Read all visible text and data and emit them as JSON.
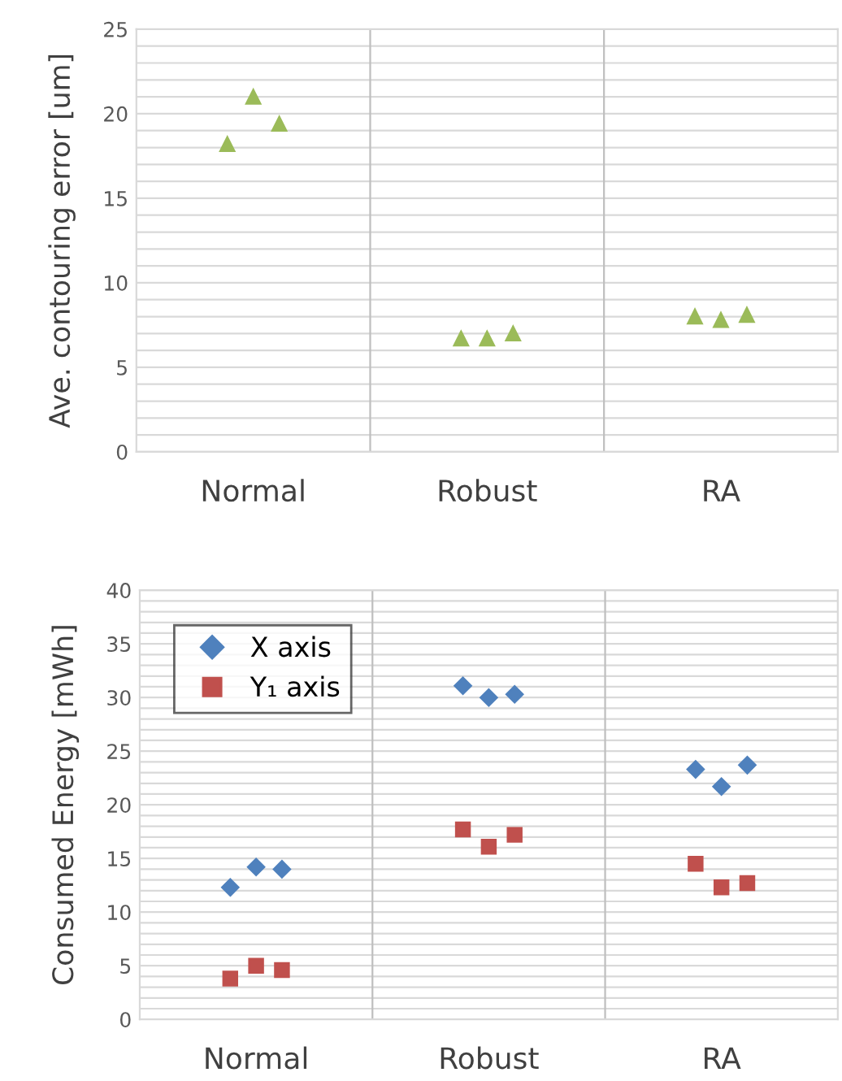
{
  "chart_data": [
    {
      "type": "scatter",
      "ylabel": "Ave. contouring error [um]",
      "categories": [
        null,
        null,
        null,
        null,
        "Normal",
        null,
        null,
        null,
        null,
        null,
        null,
        null,
        null,
        "Robust",
        null,
        null,
        null,
        null,
        null,
        null,
        null,
        null,
        "RA",
        null,
        null,
        null,
        null
      ],
      "ylim": [
        0,
        25
      ],
      "yticks": [
        0,
        {
          "value": 1,
          "label": null
        },
        {
          "value": 2,
          "label": null
        },
        {
          "value": 3,
          "label": null
        },
        {
          "value": 4,
          "label": null
        },
        5,
        {
          "value": 6,
          "label": null
        },
        {
          "value": 7,
          "label": null
        },
        {
          "value": 8,
          "label": null
        },
        {
          "value": 9,
          "label": null
        },
        10,
        {
          "value": 11,
          "label": null
        },
        {
          "value": 12,
          "label": null
        },
        {
          "value": 13,
          "label": null
        },
        {
          "value": 14,
          "label": null
        },
        15,
        {
          "value": 16,
          "label": null
        },
        {
          "value": 17,
          "label": null
        },
        {
          "value": 18,
          "label": null
        },
        {
          "value": 19,
          "label": null
        },
        20,
        {
          "value": 21,
          "label": null
        },
        {
          "value": 22,
          "label": null
        },
        {
          "value": 23,
          "label": null
        },
        {
          "value": 24,
          "label": null
        },
        25
      ],
      "grid": "y",
      "marker": "triangle",
      "series": [
        {
          "color": "#9bbb59",
          "values": [
            null,
            null,
            null,
            18.2,
            21.0,
            19.4,
            null,
            null,
            null,
            null,
            null,
            null,
            6.7,
            6.7,
            7.0,
            null,
            null,
            null,
            null,
            null,
            null,
            8.0,
            7.8,
            8.1,
            null,
            null,
            null
          ]
        }
      ]
    },
    {
      "type": "scatter",
      "ylabel": "Consumed Energy [mWh]",
      "categories": [
        null,
        null,
        null,
        null,
        "Normal",
        null,
        null,
        null,
        null,
        null,
        null,
        null,
        null,
        "Robust",
        null,
        null,
        null,
        null,
        null,
        null,
        null,
        null,
        "RA",
        null,
        null,
        null,
        null
      ],
      "ylim": [
        0,
        40
      ],
      "yticks": [
        0,
        {
          "value": 1,
          "label": null
        },
        {
          "value": 2,
          "label": null
        },
        {
          "value": 3,
          "label": null
        },
        {
          "value": 4,
          "label": null
        },
        5,
        {
          "value": 6,
          "label": null
        },
        {
          "value": 7,
          "label": null
        },
        {
          "value": 8,
          "label": null
        },
        {
          "value": 9,
          "label": null
        },
        10,
        {
          "value": 11,
          "label": null
        },
        {
          "value": 12,
          "label": null
        },
        {
          "value": 13,
          "label": null
        },
        {
          "value": 14,
          "label": null
        },
        15,
        {
          "value": 16,
          "label": null
        },
        {
          "value": 17,
          "label": null
        },
        {
          "value": 18,
          "label": null
        },
        {
          "value": 19,
          "label": null
        },
        20,
        {
          "value": 21,
          "label": null
        },
        {
          "value": 22,
          "label": null
        },
        {
          "value": 23,
          "label": null
        },
        {
          "value": 24,
          "label": null
        },
        25,
        {
          "value": 26,
          "label": null
        },
        {
          "value": 27,
          "label": null
        },
        {
          "value": 28,
          "label": null
        },
        {
          "value": 29,
          "label": null
        },
        30,
        {
          "value": 31,
          "label": null
        },
        {
          "value": 32,
          "label": null
        },
        {
          "value": 33,
          "label": null
        },
        {
          "value": 34,
          "label": null
        },
        35,
        {
          "value": 36,
          "label": null
        },
        {
          "value": 37,
          "label": null
        },
        {
          "value": 38,
          "label": null
        },
        {
          "value": 39,
          "label": null
        },
        40
      ],
      "grid": "y",
      "legend": "top left",
      "series": [
        {
          "name": "X axis",
          "color": "#4f81bd",
          "marker": "diamond",
          "values": [
            null,
            null,
            null,
            12.3,
            14.2,
            14.0,
            null,
            null,
            null,
            null,
            null,
            null,
            31.1,
            30.0,
            30.3,
            null,
            null,
            null,
            null,
            null,
            null,
            23.3,
            21.7,
            23.7,
            null,
            null,
            null
          ]
        },
        {
          "name": "Y₁ axis",
          "color": "#c0504d",
          "marker": "square",
          "values": [
            null,
            null,
            null,
            3.8,
            5.0,
            4.6,
            null,
            null,
            null,
            null,
            null,
            null,
            17.7,
            16.1,
            17.2,
            null,
            null,
            null,
            null,
            null,
            null,
            14.5,
            12.3,
            12.7,
            null,
            null,
            null
          ]
        }
      ]
    }
  ]
}
